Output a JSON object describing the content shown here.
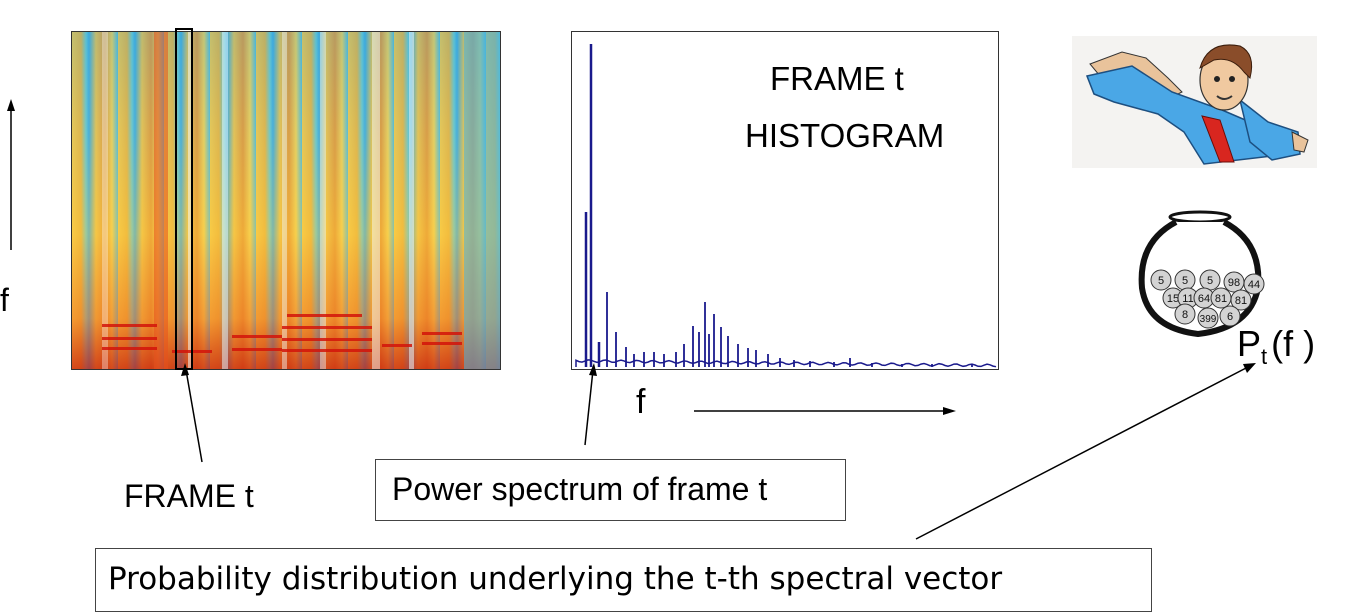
{
  "spectrogram": {
    "f_axis_label": "f",
    "frame_label": "FRAME   t"
  },
  "spectrum": {
    "title_line1": "FRAME   t",
    "title_line2": "HISTOGRAM",
    "f_axis_label": "f",
    "caption": "Power spectrum of frame t",
    "color": "#1a1a8c"
  },
  "jar": {
    "ball_labels": [
      "5",
      "5",
      "5",
      "98",
      "44",
      "15",
      "11",
      "64",
      "81",
      "81",
      "8",
      "399",
      "6"
    ]
  },
  "prob_label": {
    "base": "P",
    "subscript": "t",
    "args": "(f )"
  },
  "probability_caption": "Probability distribution underlying the t-th spectral vector"
}
